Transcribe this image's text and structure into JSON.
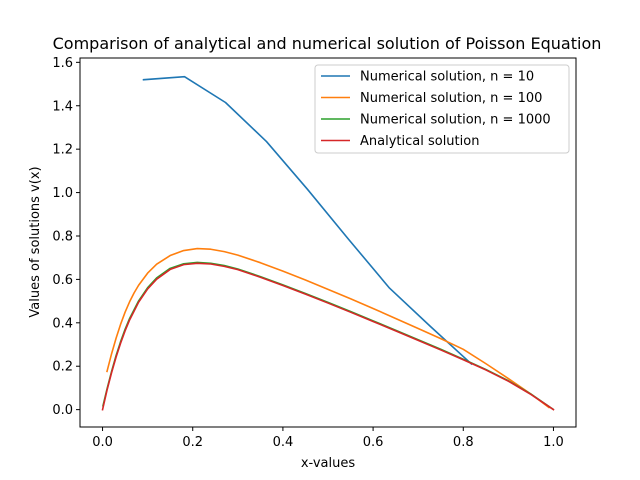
{
  "chart_data": {
    "type": "line",
    "title": "Comparison of analytical and numerical solution of Poisson Equation",
    "xlabel": "x-values",
    "ylabel": "Values of solutions v(x)",
    "xlim": [
      -0.05,
      1.05
    ],
    "ylim": [
      -0.08,
      1.62
    ],
    "xticks": [
      0.0,
      0.2,
      0.4,
      0.6,
      0.8,
      1.0
    ],
    "xtick_labels": [
      "0.0",
      "0.2",
      "0.4",
      "0.6",
      "0.8",
      "1.0"
    ],
    "yticks": [
      0.0,
      0.2,
      0.4,
      0.6,
      0.8,
      1.0,
      1.2,
      1.4,
      1.6
    ],
    "ytick_labels": [
      "0.0",
      "0.2",
      "0.4",
      "0.6",
      "0.8",
      "1.0",
      "1.2",
      "1.4",
      "1.6"
    ],
    "grid": false,
    "legend_position": "top-right",
    "series": [
      {
        "name": "Numerical solution, n = 10",
        "color": "#1f77b4",
        "x": [
          0.0909,
          0.1818,
          0.2727,
          0.3636,
          0.4545,
          0.5455,
          0.6364,
          0.7273,
          0.8182
        ],
        "y": [
          1.52,
          1.534,
          1.415,
          1.235,
          1.015,
          0.785,
          0.56,
          0.383,
          0.21
        ]
      },
      {
        "name": "Numerical solution, n = 100",
        "color": "#ff7f0e",
        "x": [
          0.0099,
          0.02,
          0.03,
          0.04,
          0.05,
          0.06,
          0.07,
          0.08,
          0.1,
          0.12,
          0.15,
          0.18,
          0.21,
          0.24,
          0.27,
          0.3,
          0.35,
          0.4,
          0.45,
          0.5,
          0.55,
          0.6,
          0.65,
          0.7,
          0.75,
          0.8,
          0.85,
          0.9,
          0.95,
          0.99
        ],
        "y": [
          0.176,
          0.257,
          0.329,
          0.393,
          0.449,
          0.497,
          0.538,
          0.573,
          0.629,
          0.67,
          0.71,
          0.733,
          0.742,
          0.739,
          0.728,
          0.712,
          0.677,
          0.638,
          0.597,
          0.554,
          0.511,
          0.466,
          0.42,
          0.374,
          0.327,
          0.278,
          0.212,
          0.143,
          0.072,
          0.01
        ]
      },
      {
        "name": "Numerical solution, n = 1000",
        "color": "#2ca02c",
        "x": [
          0.001,
          0.01,
          0.02,
          0.03,
          0.04,
          0.05,
          0.06,
          0.08,
          0.1,
          0.12,
          0.15,
          0.18,
          0.21,
          0.24,
          0.27,
          0.3,
          0.35,
          0.4,
          0.45,
          0.5,
          0.55,
          0.6,
          0.65,
          0.7,
          0.75,
          0.8,
          0.85,
          0.9,
          0.95,
          0.999
        ],
        "y": [
          0.018,
          0.096,
          0.176,
          0.249,
          0.313,
          0.37,
          0.42,
          0.501,
          0.562,
          0.607,
          0.651,
          0.672,
          0.678,
          0.674,
          0.664,
          0.648,
          0.613,
          0.575,
          0.535,
          0.494,
          0.452,
          0.409,
          0.366,
          0.322,
          0.278,
          0.232,
          0.185,
          0.133,
          0.072,
          0.002
        ]
      },
      {
        "name": "Analytical solution",
        "color": "#d62728",
        "x": [
          0.0,
          0.01,
          0.02,
          0.03,
          0.04,
          0.05,
          0.06,
          0.08,
          0.1,
          0.12,
          0.15,
          0.18,
          0.21,
          0.24,
          0.27,
          0.3,
          0.35,
          0.4,
          0.45,
          0.5,
          0.55,
          0.6,
          0.65,
          0.7,
          0.75,
          0.8,
          0.85,
          0.9,
          0.95,
          1.0
        ],
        "y": [
          0.0,
          0.09,
          0.17,
          0.242,
          0.306,
          0.363,
          0.413,
          0.495,
          0.556,
          0.601,
          0.646,
          0.668,
          0.674,
          0.671,
          0.66,
          0.645,
          0.61,
          0.572,
          0.532,
          0.491,
          0.449,
          0.406,
          0.363,
          0.319,
          0.275,
          0.23,
          0.183,
          0.131,
          0.07,
          0.0
        ]
      }
    ]
  }
}
